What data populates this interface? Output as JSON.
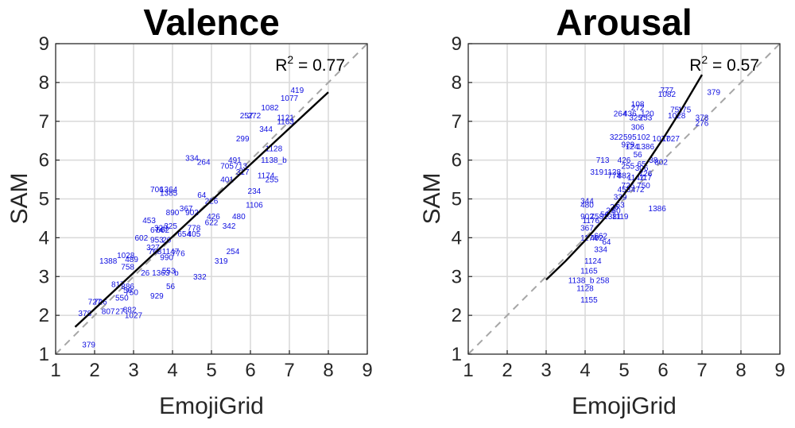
{
  "chart_data": [
    {
      "type": "scatter",
      "title": "Valence",
      "xlabel": "EmojiGrid",
      "ylabel": "SAM",
      "xlim": [
        1,
        9
      ],
      "ylim": [
        1,
        9
      ],
      "xticks": [
        "1",
        "2",
        "3",
        "4",
        "5",
        "6",
        "7",
        "8",
        "9"
      ],
      "yticks": [
        "1",
        "2",
        "3",
        "4",
        "5",
        "6",
        "7",
        "8",
        "9"
      ],
      "grid": true,
      "annotation": {
        "base": "R",
        "sup": "2",
        "text": " = 0.77"
      },
      "reference_line": {
        "x": [
          1,
          9
        ],
        "y": [
          1,
          9
        ],
        "style": "dashed"
      },
      "fit_line": {
        "x": [
          1.5,
          8.0
        ],
        "y": [
          1.7,
          7.75
        ]
      },
      "points": [
        {
          "label": "419",
          "x": 7.2,
          "y": 7.8
        },
        {
          "label": "1077",
          "x": 7.0,
          "y": 7.6
        },
        {
          "label": "1082",
          "x": 6.5,
          "y": 7.35
        },
        {
          "label": "257",
          "x": 5.9,
          "y": 7.15
        },
        {
          "label": "272",
          "x": 6.1,
          "y": 7.15
        },
        {
          "label": "1121",
          "x": 6.9,
          "y": 7.1
        },
        {
          "label": "1163",
          "x": 6.9,
          "y": 7.0
        },
        {
          "label": "344",
          "x": 6.4,
          "y": 6.8
        },
        {
          "label": "299",
          "x": 5.8,
          "y": 6.55
        },
        {
          "label": "1128",
          "x": 6.6,
          "y": 6.3
        },
        {
          "label": "334",
          "x": 4.5,
          "y": 6.05
        },
        {
          "label": "264",
          "x": 4.8,
          "y": 5.95
        },
        {
          "label": "491",
          "x": 5.6,
          "y": 6.0
        },
        {
          "label": "1138_b",
          "x": 6.6,
          "y": 6.0
        },
        {
          "label": "705",
          "x": 5.4,
          "y": 5.85
        },
        {
          "label": "713",
          "x": 5.75,
          "y": 5.85
        },
        {
          "label": "317",
          "x": 5.8,
          "y": 5.7
        },
        {
          "label": "401",
          "x": 5.4,
          "y": 5.5
        },
        {
          "label": "1174",
          "x": 6.4,
          "y": 5.6
        },
        {
          "label": "255",
          "x": 6.55,
          "y": 5.5
        },
        {
          "label": "706",
          "x": 3.6,
          "y": 5.25
        },
        {
          "label": "1364",
          "x": 3.9,
          "y": 5.25
        },
        {
          "label": "1385",
          "x": 3.9,
          "y": 5.15
        },
        {
          "label": "234",
          "x": 6.1,
          "y": 5.2
        },
        {
          "label": "64",
          "x": 4.75,
          "y": 5.1
        },
        {
          "label": "226",
          "x": 5.0,
          "y": 4.95
        },
        {
          "label": "1106",
          "x": 6.1,
          "y": 4.85
        },
        {
          "label": "367",
          "x": 4.35,
          "y": 4.75
        },
        {
          "label": "890",
          "x": 4.0,
          "y": 4.65
        },
        {
          "label": "902",
          "x": 4.5,
          "y": 4.65
        },
        {
          "label": "480",
          "x": 5.7,
          "y": 4.55
        },
        {
          "label": "426",
          "x": 5.05,
          "y": 4.55
        },
        {
          "label": "453",
          "x": 3.4,
          "y": 4.45
        },
        {
          "label": "622",
          "x": 5.0,
          "y": 4.4
        },
        {
          "label": "342",
          "x": 5.45,
          "y": 4.3
        },
        {
          "label": "325",
          "x": 3.95,
          "y": 4.3
        },
        {
          "label": "778",
          "x": 4.55,
          "y": 4.25
        },
        {
          "label": "320",
          "x": 3.7,
          "y": 4.25
        },
        {
          "label": "674",
          "x": 3.6,
          "y": 4.2
        },
        {
          "label": "662",
          "x": 3.75,
          "y": 4.2
        },
        {
          "label": "405",
          "x": 4.55,
          "y": 4.1
        },
        {
          "label": "654",
          "x": 4.3,
          "y": 4.1
        },
        {
          "label": "602",
          "x": 3.2,
          "y": 4.0
        },
        {
          "label": "953",
          "x": 3.6,
          "y": 3.95
        },
        {
          "label": "26",
          "x": 3.85,
          "y": 3.95
        },
        {
          "label": "327",
          "x": 3.5,
          "y": 3.75
        },
        {
          "label": "768",
          "x": 3.55,
          "y": 3.65
        },
        {
          "label": "1147",
          "x": 3.95,
          "y": 3.65
        },
        {
          "label": "776",
          "x": 4.15,
          "y": 3.6
        },
        {
          "label": "254",
          "x": 5.55,
          "y": 3.65
        },
        {
          "label": "1028",
          "x": 2.8,
          "y": 3.55
        },
        {
          "label": "489",
          "x": 2.95,
          "y": 3.45
        },
        {
          "label": "990",
          "x": 3.85,
          "y": 3.5
        },
        {
          "label": "1388",
          "x": 2.35,
          "y": 3.4
        },
        {
          "label": "319",
          "x": 5.25,
          "y": 3.4
        },
        {
          "label": "758",
          "x": 2.85,
          "y": 3.25
        },
        {
          "label": "26",
          "x": 3.3,
          "y": 3.1
        },
        {
          "label": "1363",
          "x": 3.7,
          "y": 3.1
        },
        {
          "label": "553",
          "x": 3.9,
          "y": 3.15
        },
        {
          "label": "b",
          "x": 4.1,
          "y": 3.1
        },
        {
          "label": "332",
          "x": 4.7,
          "y": 3.0
        },
        {
          "label": "817",
          "x": 2.6,
          "y": 2.8
        },
        {
          "label": "386",
          "x": 2.85,
          "y": 2.75
        },
        {
          "label": "56",
          "x": 2.85,
          "y": 2.65
        },
        {
          "label": "750",
          "x": 2.95,
          "y": 2.6
        },
        {
          "label": "56",
          "x": 3.95,
          "y": 2.75
        },
        {
          "label": "929",
          "x": 3.6,
          "y": 2.5
        },
        {
          "label": "550",
          "x": 2.7,
          "y": 2.45
        },
        {
          "label": "727",
          "x": 2.0,
          "y": 2.35
        },
        {
          "label": "726",
          "x": 2.15,
          "y": 2.35
        },
        {
          "label": "882",
          "x": 2.9,
          "y": 2.15
        },
        {
          "label": "807",
          "x": 2.35,
          "y": 2.1
        },
        {
          "label": "27",
          "x": 2.65,
          "y": 2.1
        },
        {
          "label": "1027",
          "x": 3.0,
          "y": 2.0
        },
        {
          "label": "378",
          "x": 1.75,
          "y": 2.05
        },
        {
          "label": "379",
          "x": 1.85,
          "y": 1.25
        }
      ]
    },
    {
      "type": "scatter",
      "title": "Arousal",
      "xlabel": "EmojiGrid",
      "ylabel": "SAM",
      "xlim": [
        1,
        9
      ],
      "ylim": [
        1,
        9
      ],
      "xticks": [
        "1",
        "2",
        "3",
        "4",
        "5",
        "6",
        "7",
        "8",
        "9"
      ],
      "yticks": [
        "1",
        "2",
        "3",
        "4",
        "5",
        "6",
        "7",
        "8",
        "9"
      ],
      "grid": true,
      "annotation": {
        "base": "R",
        "sup": "2",
        "text": " = 0.57"
      },
      "reference_line": {
        "x": [
          1,
          9
        ],
        "y": [
          1,
          9
        ],
        "style": "dashed"
      },
      "fit_line": {
        "x": [
          3.0,
          3.5,
          4.0,
          4.5,
          5.0,
          5.5,
          6.0,
          6.5,
          7.0
        ],
        "y": [
          2.92,
          3.4,
          3.93,
          4.5,
          5.12,
          5.8,
          6.55,
          7.35,
          8.2
        ]
      },
      "points": [
        {
          "label": "777",
          "x": 6.1,
          "y": 7.8
        },
        {
          "label": "379",
          "x": 7.3,
          "y": 7.75
        },
        {
          "label": "1082",
          "x": 6.1,
          "y": 7.7
        },
        {
          "label": "108",
          "x": 5.35,
          "y": 7.45
        },
        {
          "label": "272",
          "x": 5.35,
          "y": 7.35
        },
        {
          "label": "75",
          "x": 6.3,
          "y": 7.3
        },
        {
          "label": "175",
          "x": 6.55,
          "y": 7.3
        },
        {
          "label": "264",
          "x": 4.9,
          "y": 7.2
        },
        {
          "label": "436",
          "x": 5.15,
          "y": 7.2
        },
        {
          "label": "120",
          "x": 5.6,
          "y": 7.2
        },
        {
          "label": "1028",
          "x": 6.35,
          "y": 7.15
        },
        {
          "label": "325",
          "x": 5.3,
          "y": 7.1
        },
        {
          "label": "253",
          "x": 5.55,
          "y": 7.1
        },
        {
          "label": "378",
          "x": 7.0,
          "y": 7.1
        },
        {
          "label": "276",
          "x": 7.0,
          "y": 6.95
        },
        {
          "label": "306",
          "x": 5.35,
          "y": 6.85
        },
        {
          "label": "322",
          "x": 4.8,
          "y": 6.6
        },
        {
          "label": "595",
          "x": 5.15,
          "y": 6.6
        },
        {
          "label": "102",
          "x": 5.5,
          "y": 6.6
        },
        {
          "label": "1077",
          "x": 5.95,
          "y": 6.55
        },
        {
          "label": "1027",
          "x": 6.2,
          "y": 6.55
        },
        {
          "label": "929",
          "x": 5.1,
          "y": 6.4
        },
        {
          "label": "124",
          "x": 5.2,
          "y": 6.35
        },
        {
          "label": "1386",
          "x": 5.55,
          "y": 6.35
        },
        {
          "label": "713",
          "x": 4.45,
          "y": 6.0
        },
        {
          "label": "56",
          "x": 5.35,
          "y": 6.15
        },
        {
          "label": "426",
          "x": 5.0,
          "y": 6.0
        },
        {
          "label": "38",
          "x": 5.75,
          "y": 6.0
        },
        {
          "label": "802",
          "x": 5.95,
          "y": 5.95
        },
        {
          "label": "255",
          "x": 5.1,
          "y": 5.85
        },
        {
          "label": "65",
          "x": 5.45,
          "y": 5.9
        },
        {
          "label": "306",
          "x": 5.45,
          "y": 5.8
        },
        {
          "label": "319",
          "x": 4.3,
          "y": 5.7
        },
        {
          "label": "1128",
          "x": 4.7,
          "y": 5.7
        },
        {
          "label": "774",
          "x": 4.75,
          "y": 5.6
        },
        {
          "label": "882",
          "x": 5.0,
          "y": 5.6
        },
        {
          "label": "726",
          "x": 5.55,
          "y": 5.65
        },
        {
          "label": "1147",
          "x": 5.3,
          "y": 5.55
        },
        {
          "label": "117",
          "x": 5.55,
          "y": 5.55
        },
        {
          "label": "726",
          "x": 5.1,
          "y": 5.35
        },
        {
          "label": "750",
          "x": 5.5,
          "y": 5.35
        },
        {
          "label": "453",
          "x": 5.0,
          "y": 5.25
        },
        {
          "label": "472",
          "x": 5.35,
          "y": 5.25
        },
        {
          "label": "339",
          "x": 4.9,
          "y": 5.05
        },
        {
          "label": "344",
          "x": 4.05,
          "y": 4.95
        },
        {
          "label": "480",
          "x": 4.05,
          "y": 4.85
        },
        {
          "label": "26",
          "x": 4.75,
          "y": 4.8
        },
        {
          "label": "63",
          "x": 4.9,
          "y": 4.85
        },
        {
          "label": "1386",
          "x": 5.85,
          "y": 4.75
        },
        {
          "label": "26",
          "x": 4.65,
          "y": 4.7
        },
        {
          "label": "60",
          "x": 4.8,
          "y": 4.7
        },
        {
          "label": "902",
          "x": 4.05,
          "y": 4.55
        },
        {
          "label": "758",
          "x": 4.3,
          "y": 4.55
        },
        {
          "label": "1381",
          "x": 4.7,
          "y": 4.55
        },
        {
          "label": "1119",
          "x": 4.9,
          "y": 4.55
        },
        {
          "label": "56",
          "x": 4.5,
          "y": 4.6
        },
        {
          "label": "1176",
          "x": 4.15,
          "y": 4.45
        },
        {
          "label": "367",
          "x": 4.05,
          "y": 4.25
        },
        {
          "label": "662",
          "x": 4.4,
          "y": 4.05
        },
        {
          "label": "1174",
          "x": 4.1,
          "y": 4.0
        },
        {
          "label": "402",
          "x": 4.3,
          "y": 4.0
        },
        {
          "label": "64",
          "x": 4.55,
          "y": 3.9
        },
        {
          "label": "334",
          "x": 4.4,
          "y": 3.7
        },
        {
          "label": "1124",
          "x": 4.2,
          "y": 3.4
        },
        {
          "label": "1165",
          "x": 4.1,
          "y": 3.15
        },
        {
          "label": "1138_b",
          "x": 3.9,
          "y": 2.9
        },
        {
          "label": "258",
          "x": 4.45,
          "y": 2.9
        },
        {
          "label": "1128",
          "x": 4.0,
          "y": 2.7
        },
        {
          "label": "1155",
          "x": 4.1,
          "y": 2.4
        }
      ]
    }
  ]
}
